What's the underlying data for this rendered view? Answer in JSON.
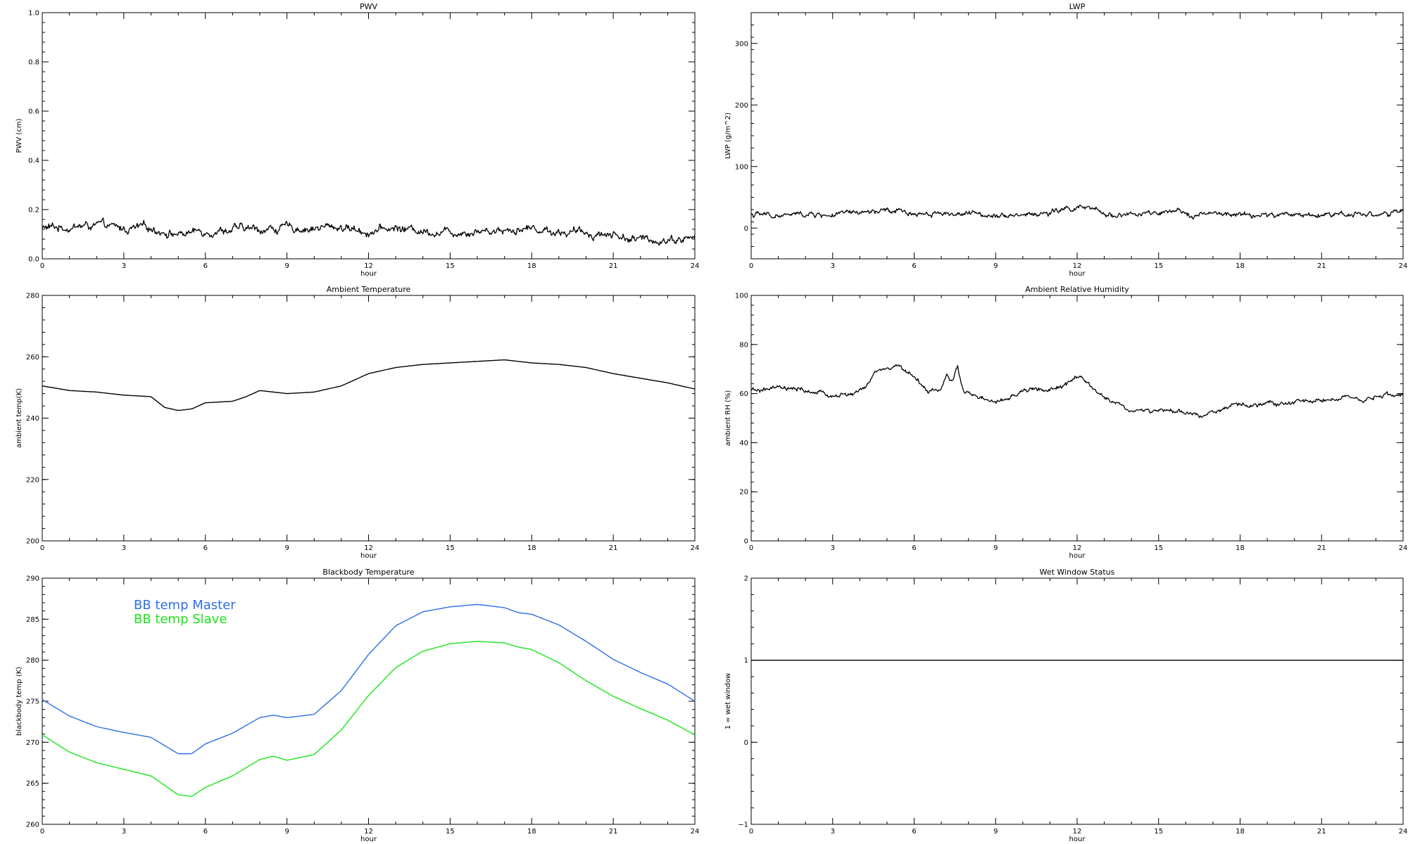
{
  "chart_data": [
    {
      "type": "line",
      "title": "PWV",
      "xlabel": "hour",
      "ylabel": "PWV (cm)",
      "xlim": [
        0,
        24
      ],
      "ylim": [
        0.0,
        1.0
      ],
      "xticks": [
        "0",
        "3",
        "6",
        "9",
        "12",
        "15",
        "18",
        "21",
        "24"
      ],
      "yticks": [
        "0.0",
        "0.2",
        "0.4",
        "0.6",
        "0.8",
        "1.0"
      ],
      "noisy": true,
      "series": [
        {
          "color": "#000000",
          "x": [
            0,
            1,
            2,
            3,
            4,
            5,
            6,
            7,
            8,
            9,
            10,
            11,
            12,
            13,
            14,
            15,
            16,
            17,
            18,
            19,
            20,
            21,
            22,
            23,
            24
          ],
          "y": [
            0.125,
            0.13,
            0.135,
            0.12,
            0.125,
            0.1,
            0.115,
            0.12,
            0.12,
            0.125,
            0.125,
            0.13,
            0.11,
            0.125,
            0.115,
            0.11,
            0.115,
            0.12,
            0.125,
            0.11,
            0.105,
            0.1,
            0.075,
            0.08,
            0.085
          ]
        }
      ]
    },
    {
      "type": "line",
      "title": "LWP",
      "xlabel": "hour",
      "ylabel": "LWP (g/m^2)",
      "xlim": [
        0,
        24
      ],
      "ylim": [
        -50,
        350
      ],
      "xticks": [
        "0",
        "3",
        "6",
        "9",
        "12",
        "15",
        "18",
        "21",
        "24"
      ],
      "yticks": [
        "0",
        "100",
        "200",
        "300"
      ],
      "noisy": true,
      "series": [
        {
          "color": "#000000",
          "x": [
            0,
            1,
            2,
            3,
            4,
            5,
            6,
            7,
            8,
            9,
            10,
            11,
            11.5,
            12,
            12.5,
            13,
            14,
            15,
            16,
            17,
            18,
            19,
            20,
            21,
            22,
            23,
            24
          ],
          "y": [
            22,
            20,
            22,
            21,
            24,
            27,
            24,
            25,
            22,
            23,
            22,
            24,
            30,
            33,
            30,
            22,
            22,
            23,
            24,
            22,
            21,
            20,
            22,
            22,
            24,
            23,
            24
          ]
        }
      ]
    },
    {
      "type": "line",
      "title": "Ambient Temperature",
      "xlabel": "hour",
      "ylabel": "ambient temp(K)",
      "xlim": [
        0,
        24
      ],
      "ylim": [
        200,
        280
      ],
      "xticks": [
        "0",
        "3",
        "6",
        "9",
        "12",
        "15",
        "18",
        "21",
        "24"
      ],
      "yticks": [
        "200",
        "220",
        "240",
        "260",
        "280"
      ],
      "noisy": false,
      "series": [
        {
          "color": "#000000",
          "x": [
            0,
            1,
            2,
            3,
            4,
            4.5,
            5,
            5.5,
            6,
            7,
            7.5,
            8,
            9,
            10,
            11,
            12,
            13,
            14,
            15,
            16,
            17,
            18,
            19,
            20,
            21,
            22,
            23,
            24
          ],
          "y": [
            250.5,
            249,
            248.5,
            247.5,
            247,
            243.5,
            242.5,
            243,
            245,
            245.5,
            247,
            249,
            248,
            248.5,
            250.5,
            254.5,
            256.5,
            257.5,
            258,
            258.5,
            259,
            258,
            257.5,
            256.5,
            254.5,
            253,
            251.5,
            249.5
          ]
        }
      ]
    },
    {
      "type": "line",
      "title": "Ambient Relative Humidity",
      "xlabel": "hour",
      "ylabel": "ambient RH (%)",
      "xlim": [
        0,
        24
      ],
      "ylim": [
        0,
        100
      ],
      "xticks": [
        "0",
        "3",
        "6",
        "9",
        "12",
        "15",
        "18",
        "21",
        "24"
      ],
      "yticks": [
        "0",
        "20",
        "40",
        "60",
        "80",
        "100"
      ],
      "noisy": true,
      "series": [
        {
          "color": "#000000",
          "x": [
            0,
            1,
            2,
            3,
            3.8,
            4.3,
            4.6,
            5,
            5.5,
            6,
            6.5,
            7,
            7.2,
            7.4,
            7.6,
            7.8,
            8,
            8.5,
            9,
            9.5,
            10,
            10.5,
            11,
            11.5,
            12,
            12.5,
            13,
            13.5,
            14,
            15,
            16,
            16.5,
            17,
            18,
            19,
            20,
            21,
            22,
            22.5,
            23,
            24
          ],
          "y": [
            61,
            62,
            61,
            59,
            60,
            63,
            69,
            70,
            71,
            67,
            61,
            62,
            68,
            64,
            70,
            62,
            60,
            58,
            56,
            58,
            61,
            62,
            61,
            63,
            67,
            63,
            58,
            56,
            53,
            53,
            52,
            51,
            53,
            55,
            56,
            56,
            58,
            58,
            56,
            59,
            60
          ]
        }
      ]
    },
    {
      "type": "line",
      "title": "Blackbody Temperature",
      "xlabel": "hour",
      "ylabel": "blackbody temp (K)",
      "xlim": [
        0,
        24
      ],
      "ylim": [
        260,
        290
      ],
      "xticks": [
        "0",
        "3",
        "6",
        "9",
        "12",
        "15",
        "18",
        "21",
        "24"
      ],
      "yticks": [
        "260",
        "265",
        "270",
        "275",
        "280",
        "285",
        "290"
      ],
      "noisy": false,
      "legend": [
        "BB temp Master",
        "BB temp Slave"
      ],
      "series": [
        {
          "name": "BB temp Master",
          "color": "#2f6fe6",
          "x": [
            0,
            1,
            2,
            3,
            4,
            5,
            5.5,
            6,
            7,
            8,
            8.5,
            9,
            10,
            11,
            12,
            13,
            14,
            15,
            16,
            17,
            17.5,
            18,
            19,
            20,
            21,
            22,
            23,
            24
          ],
          "y": [
            275.2,
            273.2,
            271.9,
            271.2,
            270.6,
            268.6,
            268.6,
            269.8,
            271.1,
            273.0,
            273.3,
            273.0,
            273.4,
            276.3,
            280.7,
            284.2,
            285.9,
            286.5,
            286.8,
            286.4,
            285.8,
            285.6,
            284.3,
            282.3,
            280.1,
            278.5,
            277.1,
            275.0
          ]
        },
        {
          "name": "BB temp Slave",
          "color": "#1be61b",
          "x": [
            0,
            1,
            2,
            3,
            4,
            5,
            5.5,
            6,
            7,
            8,
            8.5,
            9,
            10,
            11,
            12,
            13,
            14,
            15,
            16,
            17,
            17.5,
            18,
            19,
            20,
            21,
            22,
            23,
            24
          ],
          "y": [
            270.9,
            268.8,
            267.5,
            266.7,
            265.9,
            263.6,
            263.4,
            264.5,
            265.9,
            267.9,
            268.3,
            267.8,
            268.5,
            271.5,
            275.7,
            279.1,
            281.1,
            282.0,
            282.3,
            282.1,
            281.6,
            281.3,
            279.7,
            277.5,
            275.6,
            274.1,
            272.7,
            270.9
          ]
        }
      ]
    },
    {
      "type": "line",
      "title": "Wet Window Status",
      "xlabel": "hour",
      "ylabel": "1 = wet window",
      "xlim": [
        0,
        24
      ],
      "ylim": [
        -1,
        2
      ],
      "xticks": [
        "0",
        "3",
        "6",
        "9",
        "12",
        "15",
        "18",
        "21",
        "24"
      ],
      "yticks": [
        "−1",
        "0",
        "1",
        "2"
      ],
      "noisy": false,
      "series": [
        {
          "color": "#000000",
          "x": [
            0,
            24
          ],
          "y": [
            1,
            1
          ]
        }
      ]
    }
  ]
}
